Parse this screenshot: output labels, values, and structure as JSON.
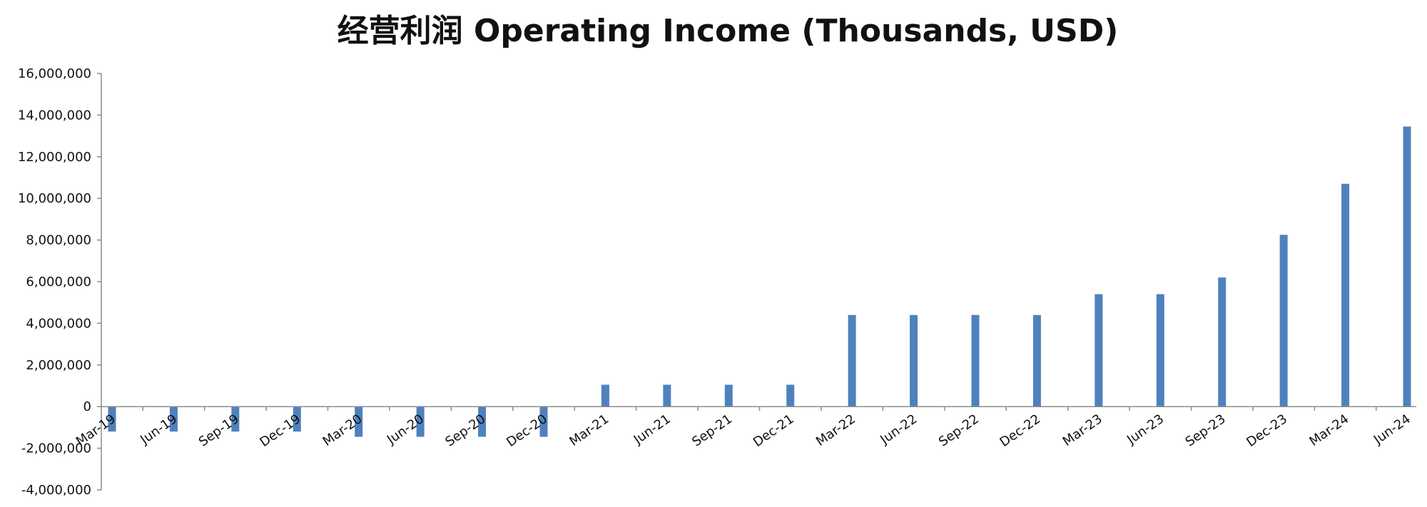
{
  "chart_data": {
    "type": "bar",
    "title": "经营利润 Operating Income (Thousands, USD)",
    "xlabel": "",
    "ylabel": "",
    "ylim": [
      -4000000,
      16000000
    ],
    "yticks": [
      16000000,
      14000000,
      12000000,
      10000000,
      8000000,
      6000000,
      4000000,
      2000000,
      0,
      -2000000,
      -4000000
    ],
    "ytick_labels": [
      "16,000,000",
      "14,000,000",
      "12,000,000",
      "10,000,000",
      "8,000,000",
      "6,000,000",
      "4,000,000",
      "2,000,000",
      "0",
      "-2,000,000",
      "-4,000,000"
    ],
    "categories": [
      "Mar-19",
      "Jun-19",
      "Sep-19",
      "Dec-19",
      "Mar-20",
      "Jun-20",
      "Sep-20",
      "Dec-20",
      "Mar-21",
      "Jun-21",
      "Sep-21",
      "Dec-21",
      "Mar-22",
      "Jun-22",
      "Sep-22",
      "Dec-22",
      "Mar-23",
      "Jun-23",
      "Sep-23",
      "Dec-23",
      "Mar-24",
      "Jun-24"
    ],
    "values": [
      -1200000,
      -1200000,
      -1200000,
      -1200000,
      -1450000,
      -1450000,
      -1450000,
      -1450000,
      1050000,
      1050000,
      1050000,
      1050000,
      4400000,
      4400000,
      4400000,
      4400000,
      5400000,
      5400000,
      6200000,
      8250000,
      10700000,
      13450000
    ],
    "colors": {
      "bar": "#4f81bd",
      "axis": "#8c8c8c",
      "text": "#111111"
    },
    "grid": false,
    "legend": "none"
  }
}
